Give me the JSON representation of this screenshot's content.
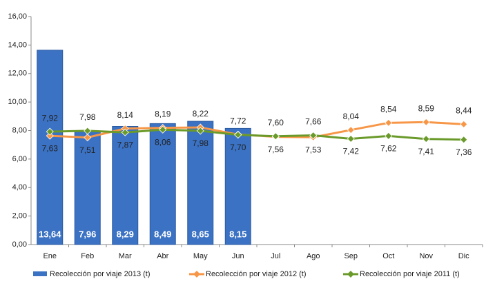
{
  "chart_data": {
    "type": "bar_line",
    "categories": [
      "Ene",
      "Feb",
      "Mar",
      "Abr",
      "May",
      "Jun",
      "Jul",
      "Ago",
      "Sep",
      "Oct",
      "Nov",
      "Dic"
    ],
    "ylim": [
      0,
      16
    ],
    "yticks": [
      {
        "value": 0,
        "label": "0,00"
      },
      {
        "value": 2,
        "label": "2,00"
      },
      {
        "value": 4,
        "label": "4,00"
      },
      {
        "value": 6,
        "label": "6,00"
      },
      {
        "value": 8,
        "label": "8,00"
      },
      {
        "value": 10,
        "label": "10,00"
      },
      {
        "value": 12,
        "label": "12,00"
      },
      {
        "value": 14,
        "label": "14,00"
      },
      {
        "value": 16,
        "label": "16,00"
      }
    ],
    "series": [
      {
        "name": "Recolección por viaje 2013 (t)",
        "type": "bar",
        "color": "#3b72c4",
        "values": [
          13.64,
          7.96,
          8.29,
          8.49,
          8.65,
          8.15,
          null,
          null,
          null,
          null,
          null,
          null
        ],
        "value_labels": [
          "13,64",
          "7,96",
          "8,29",
          "8,49",
          "8,65",
          "8,15",
          null,
          null,
          null,
          null,
          null,
          null
        ]
      },
      {
        "name": "Recolección por viaje 2012 (t)",
        "type": "line",
        "color": "#f79646",
        "values": [
          7.63,
          7.51,
          8.14,
          8.19,
          8.22,
          7.72,
          7.56,
          7.53,
          8.04,
          8.54,
          8.59,
          8.44
        ],
        "value_labels": [
          "7,63",
          "7,51",
          "8,14",
          "8,19",
          "8,22",
          "7,72",
          "7,56",
          "7,53",
          "8,04",
          "8,54",
          "8,59",
          "8,44"
        ]
      },
      {
        "name": "Recolección por viaje 2011 (t)",
        "type": "line",
        "color": "#6a9a2a",
        "values": [
          7.92,
          7.98,
          7.87,
          8.06,
          7.98,
          7.7,
          7.6,
          7.66,
          7.42,
          7.62,
          7.41,
          7.36
        ],
        "value_labels": [
          "7,92",
          "7,98",
          "7,87",
          "8,06",
          "7,98",
          "7,70",
          "7,60",
          "7,66",
          "7,42",
          "7,62",
          "7,41",
          "7,36"
        ]
      }
    ]
  }
}
